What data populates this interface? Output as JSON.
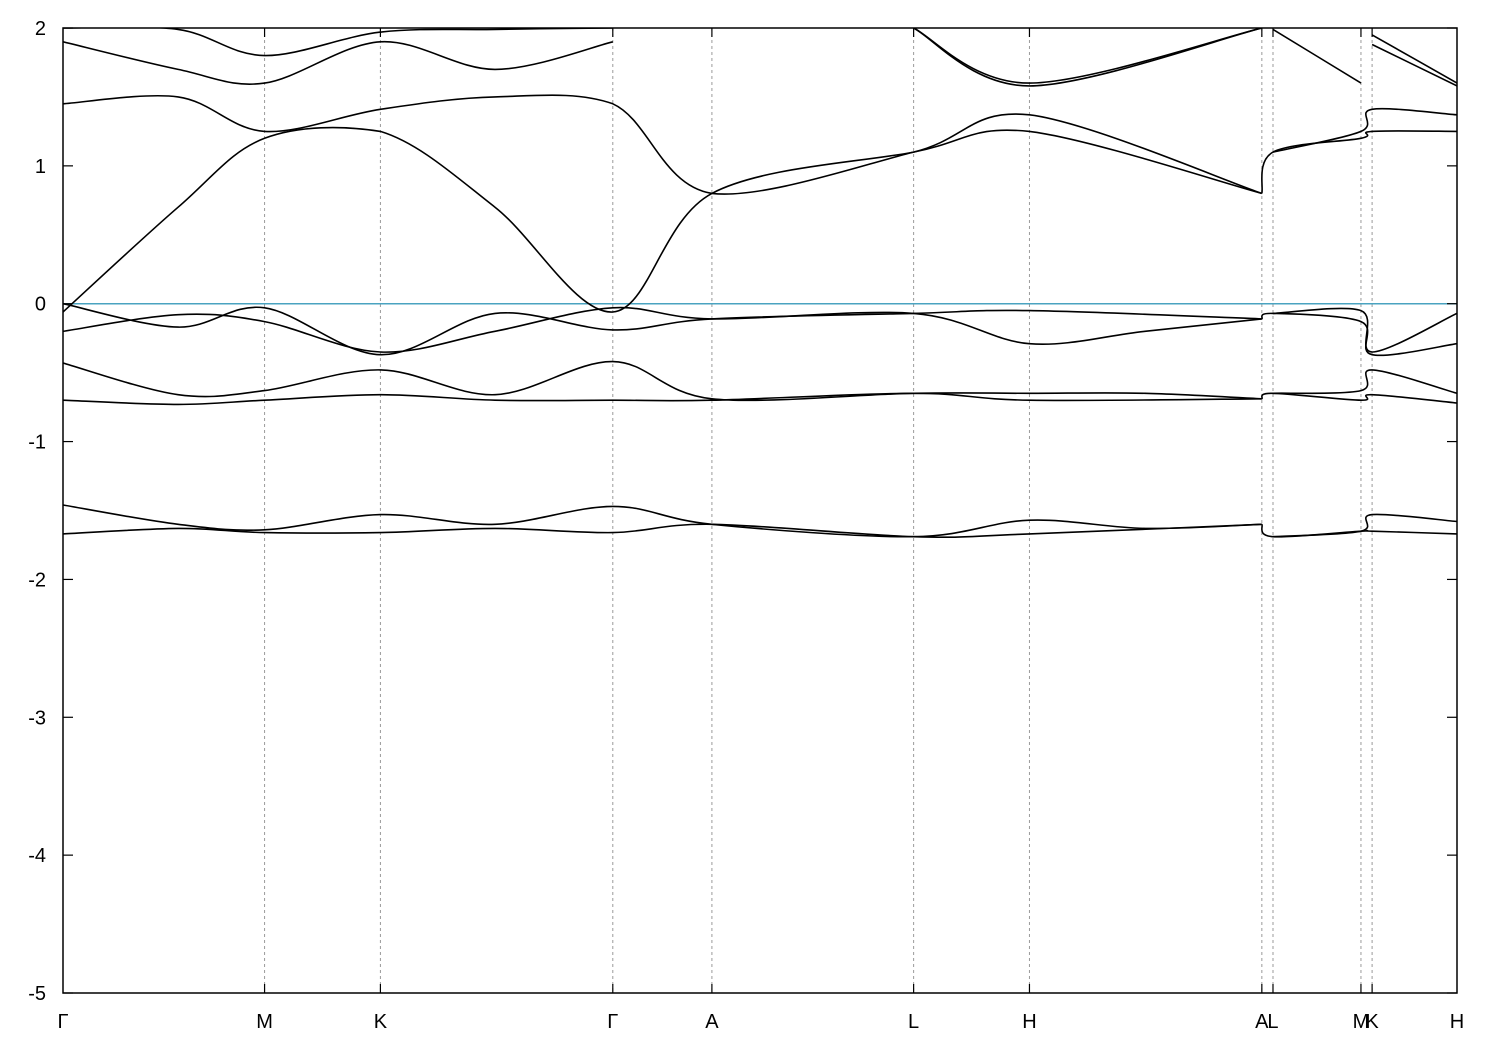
{
  "chart_data": {
    "type": "line",
    "title": "",
    "xlabel": "",
    "ylabel": "",
    "ylim": [
      -5,
      2
    ],
    "yticks": [
      2,
      1,
      0,
      -1,
      -2,
      -3,
      -4,
      -5
    ],
    "xlim": [
      0,
      1
    ],
    "kpoints": [
      {
        "label": "Γ",
        "x": 0.0
      },
      {
        "label": "M",
        "x": 0.1446
      },
      {
        "label": "K",
        "x": 0.2277
      },
      {
        "label": "Γ",
        "x": 0.3944
      },
      {
        "label": "A",
        "x": 0.4655
      },
      {
        "label": "L",
        "x": 0.6102
      },
      {
        "label": "H",
        "x": 0.6933
      },
      {
        "label": "A",
        "x": 0.86
      },
      {
        "label": "L",
        "x": 0.868
      },
      {
        "label": "M",
        "x": 0.9311
      },
      {
        "label": "K",
        "x": 0.9391
      },
      {
        "label": "H",
        "x": 1.0
      }
    ],
    "grid": "vertical dashed lines at k-points",
    "fermi_level": 0,
    "fermi_color": "#4aa3c0",
    "band_color": "#000000",
    "series": [
      {
        "values": [
          [
            0,
            -1.67
          ],
          [
            0.0826,
            -1.63
          ],
          [
            0.1446,
            -1.66
          ],
          [
            0.2277,
            -1.66
          ],
          [
            0.3099,
            -1.63
          ],
          [
            0.3944,
            -1.66
          ],
          [
            0.4655,
            -1.6
          ],
          [
            0.6102,
            -1.69
          ],
          [
            0.6933,
            -1.67
          ],
          [
            0.86,
            -1.6
          ]
        ]
      },
      {
        "values": [
          [
            0,
            -1.46
          ],
          [
            0.0826,
            -1.6
          ],
          [
            0.1446,
            -1.64
          ],
          [
            0.2277,
            -1.53
          ],
          [
            0.3099,
            -1.6
          ],
          [
            0.3944,
            -1.47
          ],
          [
            0.4655,
            -1.6
          ],
          [
            0.6102,
            -1.69
          ],
          [
            0.6933,
            -1.57
          ],
          [
            0.7762,
            -1.63
          ],
          [
            0.86,
            -1.6
          ]
        ]
      },
      {
        "values": [
          [
            0.86,
            -1.6
          ],
          [
            0.868,
            -1.69
          ],
          [
            0.9311,
            -1.65
          ],
          [
            0.9391,
            -1.65
          ],
          [
            1.0,
            -1.67
          ]
        ]
      },
      {
        "values": [
          [
            0.868,
            -1.69
          ],
          [
            0.9311,
            -1.65
          ],
          [
            0.9391,
            -1.53
          ],
          [
            1.0,
            -1.58
          ]
        ]
      },
      {
        "values": [
          [
            0,
            -0.7
          ],
          [
            0.0826,
            -0.73
          ],
          [
            0.1446,
            -0.7
          ],
          [
            0.2277,
            -0.66
          ],
          [
            0.3099,
            -0.7
          ],
          [
            0.3944,
            -0.7
          ],
          [
            0.4655,
            -0.7
          ],
          [
            0.6102,
            -0.65
          ],
          [
            0.6933,
            -0.7
          ],
          [
            0.86,
            -0.69
          ]
        ]
      },
      {
        "values": [
          [
            0,
            -0.43
          ],
          [
            0.0826,
            -0.66
          ],
          [
            0.1446,
            -0.63
          ],
          [
            0.2277,
            -0.48
          ],
          [
            0.3099,
            -0.66
          ],
          [
            0.3944,
            -0.42
          ],
          [
            0.4655,
            -0.69
          ],
          [
            0.6102,
            -0.65
          ],
          [
            0.6933,
            -0.65
          ],
          [
            0.7762,
            -0.65
          ],
          [
            0.86,
            -0.69
          ]
        ]
      },
      {
        "values": [
          [
            0.86,
            -0.69
          ],
          [
            0.868,
            -0.65
          ],
          [
            0.9311,
            -0.7
          ],
          [
            0.9391,
            -0.66
          ],
          [
            1.0,
            -0.72
          ]
        ]
      },
      {
        "values": [
          [
            0.868,
            -0.65
          ],
          [
            0.9311,
            -0.63
          ],
          [
            0.9391,
            -0.48
          ],
          [
            1.0,
            -0.65
          ]
        ]
      },
      {
        "values": [
          [
            0,
            -0.2
          ],
          [
            0.0826,
            -0.08
          ],
          [
            0.1446,
            -0.13
          ],
          [
            0.2277,
            -0.35
          ],
          [
            0.3099,
            -0.2
          ],
          [
            0.3944,
            -0.03
          ],
          [
            0.4655,
            -0.11
          ],
          [
            0.6102,
            -0.07
          ],
          [
            0.6933,
            -0.29
          ],
          [
            0.7762,
            -0.2
          ],
          [
            0.86,
            -0.11
          ]
        ]
      },
      {
        "values": [
          [
            0,
            0.0
          ],
          [
            0.0826,
            -0.17
          ],
          [
            0.1446,
            -0.03
          ],
          [
            0.2277,
            -0.37
          ],
          [
            0.3099,
            -0.07
          ],
          [
            0.3944,
            -0.19
          ],
          [
            0.4655,
            -0.11
          ],
          [
            0.6102,
            -0.07
          ],
          [
            0.6933,
            -0.05
          ],
          [
            0.86,
            -0.11
          ]
        ]
      },
      {
        "values": [
          [
            0.86,
            -0.11
          ],
          [
            0.868,
            -0.07
          ],
          [
            0.9311,
            -0.13
          ],
          [
            0.9391,
            -0.37
          ],
          [
            1.0,
            -0.29
          ]
        ]
      },
      {
        "values": [
          [
            0.868,
            -0.07
          ],
          [
            0.9311,
            -0.05
          ],
          [
            0.9391,
            -0.35
          ],
          [
            1.0,
            -0.07
          ]
        ]
      },
      {
        "values": [
          [
            0,
            -0.06
          ],
          [
            0.0826,
            0.7
          ],
          [
            0.1446,
            1.2
          ],
          [
            0.2277,
            1.25
          ],
          [
            0.3099,
            0.7
          ],
          [
            0.3944,
            -0.06
          ],
          [
            0.4655,
            0.8
          ],
          [
            0.6102,
            1.1
          ],
          [
            0.6933,
            1.25
          ],
          [
            0.86,
            0.8
          ]
        ]
      },
      {
        "values": [
          [
            0,
            1.45
          ],
          [
            0.0826,
            1.5
          ],
          [
            0.1446,
            1.25
          ],
          [
            0.2277,
            1.41
          ],
          [
            0.3099,
            1.5
          ],
          [
            0.3944,
            1.45
          ],
          [
            0.4655,
            0.8
          ],
          [
            0.6102,
            1.1
          ],
          [
            0.6933,
            1.37
          ],
          [
            0.86,
            0.8
          ]
        ]
      },
      {
        "values": [
          [
            0.86,
            0.8
          ],
          [
            0.868,
            1.1
          ],
          [
            0.9311,
            1.2
          ],
          [
            0.9391,
            1.25
          ],
          [
            1.0,
            1.25
          ]
        ]
      },
      {
        "values": [
          [
            0.868,
            1.1
          ],
          [
            0.9311,
            1.25
          ],
          [
            0.9391,
            1.41
          ],
          [
            1.0,
            1.37
          ]
        ]
      },
      {
        "values": [
          [
            0,
            1.9
          ],
          [
            0.0826,
            1.7
          ],
          [
            0.1446,
            1.6
          ],
          [
            0.2277,
            1.9
          ],
          [
            0.3099,
            1.7
          ],
          [
            0.3944,
            1.9
          ]
        ]
      },
      {
        "values": [
          [
            0,
            2.0
          ],
          [
            0.0826,
            1.99
          ],
          [
            0.1446,
            1.8
          ],
          [
            0.2277,
            1.97
          ],
          [
            0.3099,
            1.99
          ],
          [
            0.3944,
            2.0
          ]
        ]
      },
      {
        "values": [
          [
            0.6102,
            2.0
          ],
          [
            0.6933,
            1.6
          ],
          [
            0.86,
            2.0
          ]
        ]
      },
      {
        "values": [
          [
            0.6102,
            2.0
          ],
          [
            0.6933,
            1.58
          ],
          [
            0.86,
            2.0
          ]
        ]
      },
      {
        "values": [
          [
            0.868,
            1.99
          ],
          [
            0.9311,
            1.6
          ]
        ]
      },
      {
        "values": [
          [
            0.9391,
            1.88
          ],
          [
            1.0,
            1.58
          ]
        ]
      },
      {
        "values": [
          [
            0.9391,
            1.95
          ],
          [
            1.0,
            1.6
          ]
        ]
      }
    ]
  }
}
